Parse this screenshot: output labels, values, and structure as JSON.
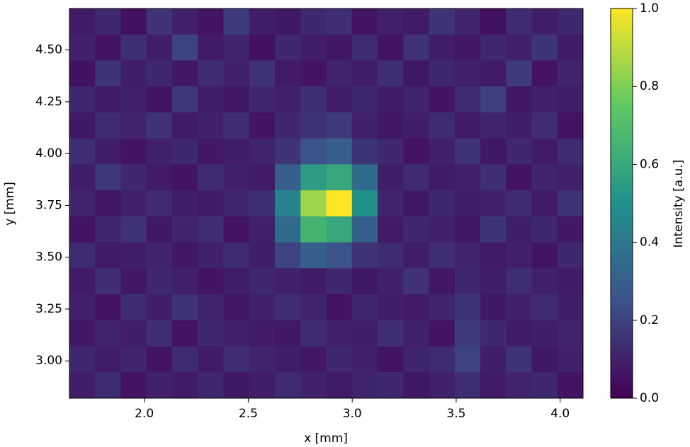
{
  "chart_data": {
    "type": "heatmap",
    "xlabel": "x [mm]",
    "ylabel": "y [mm]",
    "colorbar_label": "Intensity [a.u.]",
    "colormap": "viridis",
    "xlim": [
      1.64,
      4.11
    ],
    "ylim": [
      2.82,
      4.7
    ],
    "xticks": [
      {
        "value": 2,
        "label": "2.0"
      },
      {
        "value": 2.5,
        "label": "2.5"
      },
      {
        "value": 3,
        "label": "3.0"
      },
      {
        "value": 3.5,
        "label": "3.5"
      },
      {
        "value": 4,
        "label": "4.0"
      }
    ],
    "yticks": [
      {
        "value": 3,
        "label": "3.00"
      },
      {
        "value": 3.25,
        "label": "3.25"
      },
      {
        "value": 3.5,
        "label": "3.50"
      },
      {
        "value": 3.75,
        "label": "3.75"
      },
      {
        "value": 4,
        "label": "4.00"
      },
      {
        "value": 4.25,
        "label": "4.25"
      },
      {
        "value": 4.5,
        "label": "4.50"
      }
    ],
    "clim": [
      0,
      1
    ],
    "cticks": [
      {
        "value": 0,
        "label": "0.0"
      },
      {
        "value": 0.2,
        "label": "0.2"
      },
      {
        "value": 0.4,
        "label": "0.4"
      },
      {
        "value": 0.6,
        "label": "0.6"
      },
      {
        "value": 0.8,
        "label": "0.8"
      },
      {
        "value": 1,
        "label": "1.0"
      }
    ],
    "z": [
      [
        0.08,
        0.12,
        0.05,
        0.15,
        0.1,
        0.06,
        0.18,
        0.09,
        0.07,
        0.12,
        0.14,
        0.06,
        0.1,
        0.08,
        0.16,
        0.11,
        0.05,
        0.13,
        0.09,
        0.12
      ],
      [
        0.1,
        0.06,
        0.14,
        0.09,
        0.2,
        0.08,
        0.11,
        0.05,
        0.12,
        0.09,
        0.07,
        0.13,
        0.06,
        0.15,
        0.09,
        0.07,
        0.12,
        0.1,
        0.16,
        0.08
      ],
      [
        0.05,
        0.16,
        0.09,
        0.12,
        0.07,
        0.13,
        0.1,
        0.15,
        0.08,
        0.06,
        0.11,
        0.09,
        0.14,
        0.07,
        0.12,
        0.1,
        0.08,
        0.18,
        0.06,
        0.11
      ],
      [
        0.12,
        0.08,
        0.1,
        0.06,
        0.17,
        0.09,
        0.07,
        0.12,
        0.1,
        0.14,
        0.09,
        0.12,
        0.08,
        0.11,
        0.06,
        0.13,
        0.19,
        0.07,
        0.1,
        0.09
      ],
      [
        0.07,
        0.13,
        0.11,
        0.15,
        0.08,
        0.1,
        0.14,
        0.06,
        0.12,
        0.15,
        0.18,
        0.1,
        0.07,
        0.09,
        0.13,
        0.08,
        0.11,
        0.09,
        0.14,
        0.06
      ],
      [
        0.14,
        0.09,
        0.06,
        0.1,
        0.12,
        0.07,
        0.09,
        0.11,
        0.15,
        0.25,
        0.3,
        0.16,
        0.12,
        0.06,
        0.1,
        0.15,
        0.07,
        0.12,
        0.08,
        0.13
      ],
      [
        0.09,
        0.17,
        0.12,
        0.08,
        0.06,
        0.13,
        0.1,
        0.08,
        0.3,
        0.55,
        0.6,
        0.35,
        0.09,
        0.13,
        0.08,
        0.1,
        0.14,
        0.06,
        0.11,
        0.1
      ],
      [
        0.11,
        0.07,
        0.1,
        0.13,
        0.09,
        0.08,
        0.12,
        0.14,
        0.45,
        0.85,
        1.0,
        0.5,
        0.11,
        0.07,
        0.12,
        0.09,
        0.1,
        0.13,
        0.08,
        0.15
      ],
      [
        0.06,
        0.12,
        0.15,
        0.07,
        0.11,
        0.14,
        0.06,
        0.1,
        0.35,
        0.65,
        0.6,
        0.3,
        0.08,
        0.12,
        0.1,
        0.07,
        0.16,
        0.09,
        0.12,
        0.07
      ],
      [
        0.13,
        0.08,
        0.09,
        0.11,
        0.07,
        0.1,
        0.13,
        0.09,
        0.2,
        0.3,
        0.25,
        0.15,
        0.13,
        0.09,
        0.14,
        0.11,
        0.08,
        0.1,
        0.06,
        0.12
      ],
      [
        0.08,
        0.14,
        0.07,
        0.12,
        0.1,
        0.06,
        0.09,
        0.12,
        0.1,
        0.08,
        0.12,
        0.07,
        0.1,
        0.15,
        0.07,
        0.12,
        0.09,
        0.14,
        0.1,
        0.08
      ],
      [
        0.1,
        0.06,
        0.13,
        0.09,
        0.15,
        0.11,
        0.07,
        0.1,
        0.14,
        0.11,
        0.06,
        0.12,
        0.09,
        0.08,
        0.11,
        0.16,
        0.07,
        0.1,
        0.13,
        0.09
      ],
      [
        0.07,
        0.11,
        0.09,
        0.14,
        0.06,
        0.12,
        0.1,
        0.08,
        0.07,
        0.13,
        0.1,
        0.09,
        0.14,
        0.1,
        0.06,
        0.18,
        0.12,
        0.08,
        0.09,
        0.11
      ],
      [
        0.12,
        0.09,
        0.11,
        0.06,
        0.13,
        0.08,
        0.14,
        0.11,
        0.09,
        0.07,
        0.12,
        0.1,
        0.06,
        0.11,
        0.13,
        0.2,
        0.09,
        0.15,
        0.07,
        0.1
      ],
      [
        0.09,
        0.13,
        0.06,
        0.1,
        0.08,
        0.12,
        0.07,
        0.09,
        0.13,
        0.1,
        0.08,
        0.11,
        0.12,
        0.07,
        0.1,
        0.14,
        0.08,
        0.11,
        0.12,
        0.06
      ]
    ]
  }
}
